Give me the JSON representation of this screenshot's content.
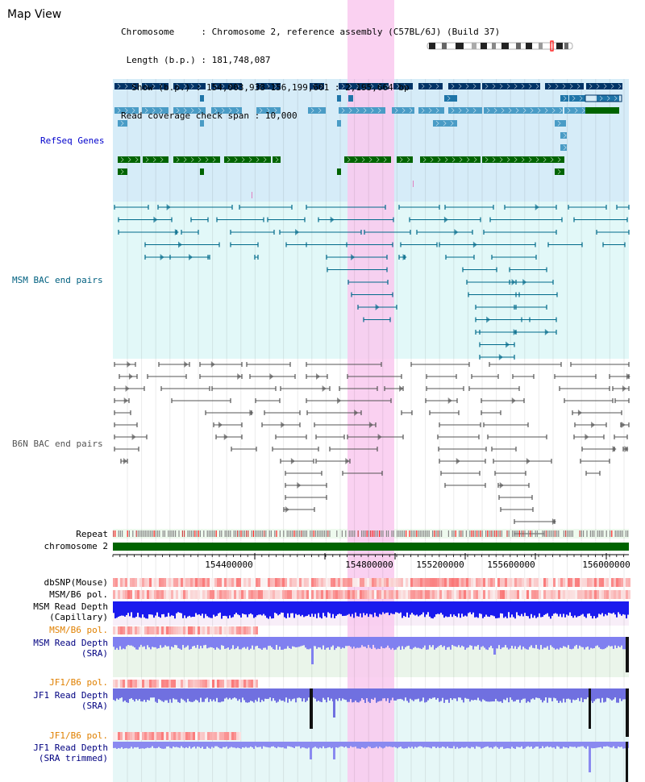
{
  "view_title": "Map View",
  "info": {
    "chromosome_key": "Chromosome",
    "chromosome_value": "Chromosome 2, reference assembly (C57BL/6J) (Build 37)",
    "length_key": "Length (b.p.)",
    "length_value": "181,748,087",
    "show_key": "Show (b.p.)",
    "show_value": "154,003,938-156,199,601 : 2,195,664 bp",
    "coverage_key": "Read coverage check span",
    "coverage_value": "10,000"
  },
  "tracks": {
    "refseq": "RefSeq Genes",
    "msm_bac": "MSM BAC end pairs",
    "b6n_bac": "B6N BAC end pairs",
    "repeat": "Repeat",
    "chromosome": "chromosome 2",
    "dbsnp": "dbSNP(Mouse)",
    "msm_b6_pol_1": "MSM/B6 pol.",
    "msm_depth_cap_1": "MSM Read Depth",
    "msm_depth_cap_2": "(Capillary)",
    "msm_b6_pol_2": "MSM/B6 pol.",
    "msm_depth_sra_1": "MSM Read Depth",
    "msm_depth_sra_2": "(SRA)",
    "jf1_b6_pol_1": "JF1/B6 pol.",
    "jf1_depth_sra_1": "JF1 Read Depth",
    "jf1_depth_sra_2": "(SRA)",
    "jf1_b6_pol_2": "JF1/B6 pol.",
    "jf1_depth_trim_1": "JF1 Read Depth",
    "jf1_depth_trim_2": "(SRA trimmed)"
  },
  "axis": {
    "ticks": [
      "154400000",
      "154800000",
      "155200000",
      "155600000",
      "156000000"
    ]
  },
  "colors": {
    "refseq_label": "#0000cc",
    "msm_label": "#006080",
    "b6n_label": "#555555",
    "orange_label": "#e08000",
    "blue_label": "#000080",
    "highlight": "#f9c9ee",
    "chromosome_bar": "#006400"
  }
}
